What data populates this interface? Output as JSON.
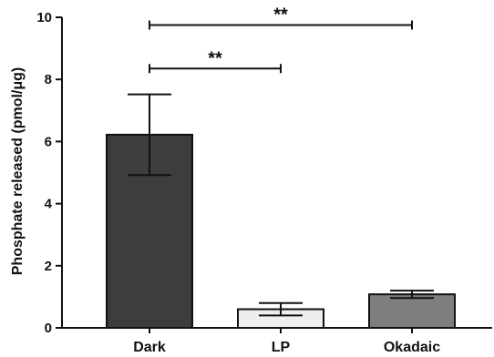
{
  "chart_data": {
    "type": "bar",
    "title": "",
    "xlabel": "",
    "ylabel": "Phosphate released (pmol/μg)",
    "ylim": [
      0,
      10
    ],
    "yticks": [
      0,
      2,
      4,
      6,
      8,
      10
    ],
    "grid": false,
    "categories": [
      "Dark",
      "LP",
      "Okadaic"
    ],
    "values": [
      6.22,
      0.6,
      1.08
    ],
    "errors": [
      1.3,
      0.2,
      0.12
    ],
    "colors": [
      "#3d3d3d",
      "#eeeeee",
      "#7e7e7e"
    ],
    "significance": [
      {
        "from": 0,
        "to": 2,
        "label": "**",
        "y": 9.75
      },
      {
        "from": 0,
        "to": 1,
        "label": "**",
        "y": 8.35
      }
    ]
  }
}
